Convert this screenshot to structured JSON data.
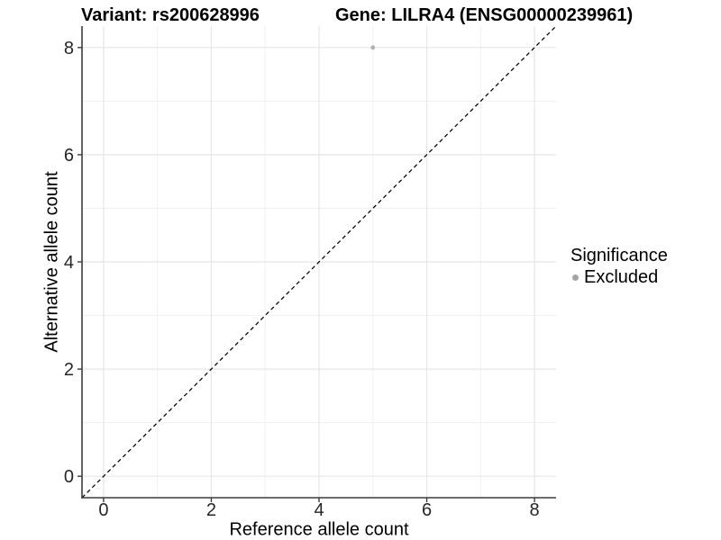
{
  "chart_data": {
    "type": "scatter",
    "titles": {
      "left": "Variant: rs200628996",
      "right": "Gene: LILRA4 (ENSG00000239961)"
    },
    "xlabel": "Reference allele count",
    "ylabel": "Alternative allele count",
    "xlim": [
      -0.4,
      8.4
    ],
    "ylim": [
      -0.4,
      8.4
    ],
    "xticks": [
      0,
      2,
      4,
      6,
      8
    ],
    "yticks": [
      0,
      2,
      4,
      6,
      8
    ],
    "x_minor_gridlines": [
      1,
      3,
      5,
      7
    ],
    "y_minor_gridlines": [
      1,
      3,
      5,
      7
    ],
    "grid": "major+minor",
    "reference_line": {
      "slope": 1,
      "intercept": 0,
      "style": "dashed",
      "color": "#000000"
    },
    "series": [
      {
        "name": "Excluded",
        "color": "#a9a9a9",
        "points": [
          {
            "x": 5,
            "y": 8
          }
        ]
      }
    ],
    "legend": {
      "position": "right",
      "title": "Significance",
      "items": [
        {
          "label": "Excluded",
          "color": "#a5a5a5"
        }
      ]
    },
    "style_colors": {
      "major_grid": "#e6e6e6",
      "minor_grid": "#f0f0f0",
      "axis_line": "#3c3c3c",
      "tick_text": "#262626"
    }
  }
}
